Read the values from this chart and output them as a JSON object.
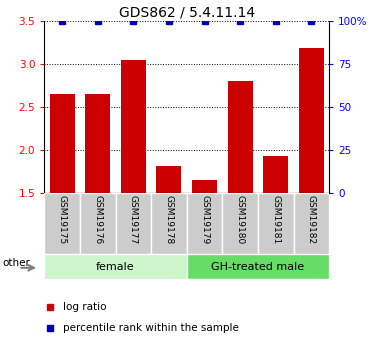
{
  "title": "GDS862 / 5.4.11.14",
  "samples": [
    "GSM19175",
    "GSM19176",
    "GSM19177",
    "GSM19178",
    "GSM19179",
    "GSM19180",
    "GSM19181",
    "GSM19182"
  ],
  "log_ratios": [
    2.65,
    2.65,
    3.05,
    1.82,
    1.65,
    2.8,
    1.93,
    3.18
  ],
  "percentile_ranks": [
    100,
    100,
    100,
    100,
    100,
    100,
    100,
    100
  ],
  "ylim_left": [
    1.5,
    3.5
  ],
  "ylim_right": [
    0,
    100
  ],
  "yticks_left": [
    1.5,
    2.0,
    2.5,
    3.0,
    3.5
  ],
  "yticks_right": [
    0,
    25,
    50,
    75,
    100
  ],
  "bar_color": "#cc0000",
  "dot_color": "#0000bb",
  "bar_width": 0.7,
  "female_color": "#ccf5cc",
  "gh_color": "#66dd66",
  "sample_box_color": "#cccccc",
  "title_fontsize": 10,
  "tick_fontsize": 7.5,
  "sample_fontsize": 6.5,
  "group_fontsize": 8,
  "legend_fontsize": 7.5
}
